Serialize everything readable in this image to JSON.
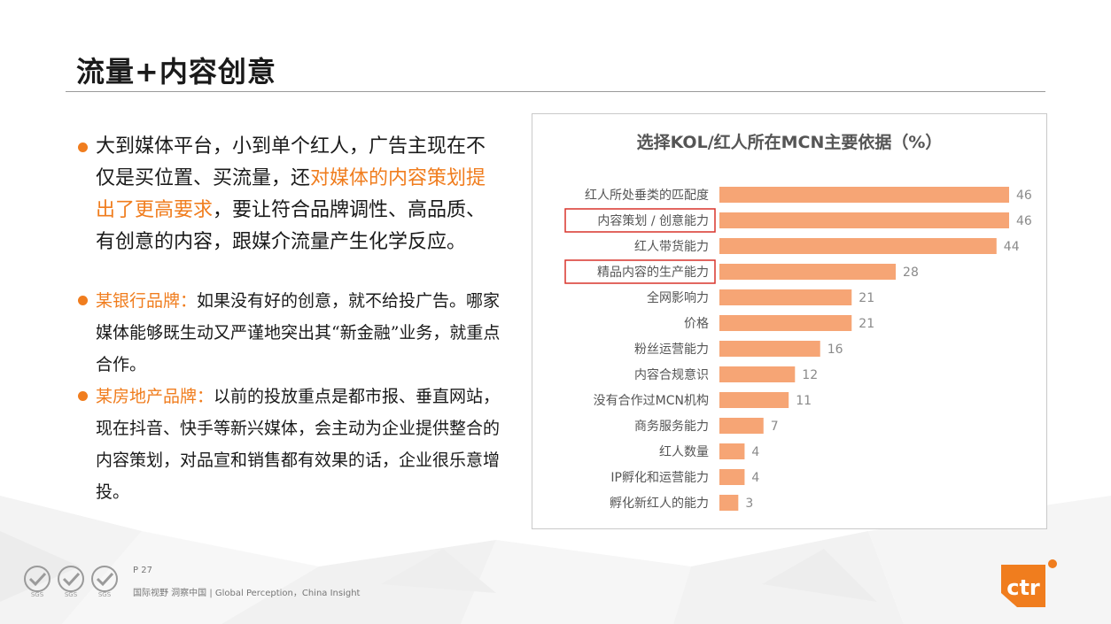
{
  "title": "流量+内容创意",
  "bullet_main": {
    "part1": "大到媒体平台，小到单个红人，广告主现在不仅是买位置、买流量，还",
    "highlight": "对媒体的内容策划提出了更高要求",
    "part2": "，要让符合品牌调性、高品质、有创意的内容，跟媒介流量产生化学反应。"
  },
  "quotes": [
    {
      "brand": "某银行品牌：",
      "text": "如果没有好的创意，就不给投广告。哪家媒体能够既生动又严谨地突出其“新金融”业务，就重点合作。"
    },
    {
      "brand": "某房地产品牌：",
      "text": "以前的投放重点是都市报、垂直网站，现在抖音、快手等新兴媒体，会主动为企业提供整合的内容策划，对品宣和销售都有效果的话，企业很乐意增投。"
    }
  ],
  "chart_data": {
    "type": "bar",
    "orientation": "horizontal",
    "title": "选择KOL/红人所在MCN主要依据（%）",
    "categories": [
      "红人所处垂类的匹配度",
      "内容策划 / 创意能力",
      "红人带货能力",
      "精品内容的生产能力",
      "全网影响力",
      "价格",
      "粉丝运营能力",
      "内容合规意识",
      "没有合作过MCN机构",
      "商务服务能力",
      "红人数量",
      "IP孵化和运营能力",
      "孵化新红人的能力"
    ],
    "values": [
      46,
      46,
      44,
      28,
      21,
      21,
      16,
      12,
      11,
      7,
      4,
      4,
      3
    ],
    "highlighted": [
      "内容策划 / 创意能力",
      "精品内容的生产能力"
    ],
    "xlim": [
      0,
      46
    ],
    "bar_color": "#f6a575",
    "highlight_box_color": "#d9342b"
  },
  "footer": {
    "page": "P 27",
    "tagline": "国际视野 洞察中国 | Global Perception，China Insight",
    "logo_text": "ctr",
    "badge_text": "SGS"
  },
  "colors": {
    "accent": "#f07d1e"
  }
}
